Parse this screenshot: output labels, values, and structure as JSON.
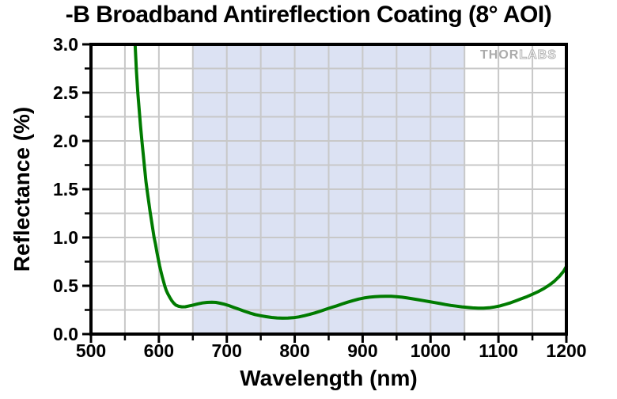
{
  "chart_data": {
    "type": "line",
    "title": "-B Broadband Antireflection Coating (8° AOI)",
    "xlabel": "Wavelength (nm)",
    "ylabel": "Reflectance (%)",
    "xlim": [
      500,
      1200
    ],
    "ylim": [
      0.0,
      3.0
    ],
    "x_ticks": [
      500,
      600,
      700,
      800,
      900,
      1000,
      1100,
      1200
    ],
    "x_tick_labels": [
      "500",
      "600",
      "700",
      "800",
      "900",
      "1000",
      "1100",
      "1200"
    ],
    "x_minor_tick_step": 50,
    "y_ticks": [
      0.0,
      0.5,
      1.0,
      1.5,
      2.0,
      2.5,
      3.0
    ],
    "y_tick_labels": [
      "0.0",
      "0.5",
      "1.0",
      "1.5",
      "2.0",
      "2.5",
      "3.0"
    ],
    "y_minor_tick_step": 0.25,
    "grid": {
      "on": true,
      "x_step": 50,
      "y_step": 0.25,
      "color": "#c8c8c8"
    },
    "shaded_region": {
      "x_start": 650,
      "x_end": 1050,
      "color": "#dce2f3"
    },
    "axis_color": "#000000",
    "watermark": {
      "solid": "THOR",
      "outline": "LABS"
    },
    "series": [
      {
        "name": "Reflectance",
        "color": "#007b00",
        "points": [
          [
            565,
            3.0
          ],
          [
            567,
            2.72
          ],
          [
            569,
            2.5
          ],
          [
            571,
            2.32
          ],
          [
            573,
            2.15
          ],
          [
            575,
            2.0
          ],
          [
            577,
            1.86
          ],
          [
            579,
            1.72
          ],
          [
            581,
            1.58
          ],
          [
            583,
            1.47
          ],
          [
            585,
            1.37
          ],
          [
            587,
            1.27
          ],
          [
            589,
            1.18
          ],
          [
            591,
            1.09
          ],
          [
            593,
            1.0
          ],
          [
            595,
            0.93
          ],
          [
            597,
            0.85
          ],
          [
            599,
            0.78
          ],
          [
            601,
            0.71
          ],
          [
            603,
            0.65
          ],
          [
            605,
            0.59
          ],
          [
            607,
            0.54
          ],
          [
            609,
            0.49
          ],
          [
            611,
            0.45
          ],
          [
            613,
            0.42
          ],
          [
            616,
            0.38
          ],
          [
            619,
            0.345
          ],
          [
            622,
            0.32
          ],
          [
            625,
            0.3
          ],
          [
            629,
            0.288
          ],
          [
            634,
            0.282
          ],
          [
            639,
            0.283
          ],
          [
            644,
            0.29
          ],
          [
            650,
            0.3
          ],
          [
            657,
            0.312
          ],
          [
            664,
            0.322
          ],
          [
            671,
            0.328
          ],
          [
            678,
            0.33
          ],
          [
            684,
            0.328
          ],
          [
            690,
            0.32
          ],
          [
            696,
            0.31
          ],
          [
            703,
            0.295
          ],
          [
            710,
            0.277
          ],
          [
            718,
            0.257
          ],
          [
            726,
            0.237
          ],
          [
            734,
            0.218
          ],
          [
            742,
            0.202
          ],
          [
            750,
            0.19
          ],
          [
            758,
            0.18
          ],
          [
            766,
            0.172
          ],
          [
            774,
            0.167
          ],
          [
            782,
            0.165
          ],
          [
            790,
            0.166
          ],
          [
            798,
            0.17
          ],
          [
            806,
            0.178
          ],
          [
            814,
            0.19
          ],
          [
            822,
            0.204
          ],
          [
            830,
            0.22
          ],
          [
            838,
            0.238
          ],
          [
            846,
            0.257
          ],
          [
            854,
            0.275
          ],
          [
            862,
            0.293
          ],
          [
            870,
            0.312
          ],
          [
            878,
            0.33
          ],
          [
            886,
            0.347
          ],
          [
            894,
            0.362
          ],
          [
            902,
            0.374
          ],
          [
            910,
            0.382
          ],
          [
            918,
            0.387
          ],
          [
            926,
            0.39
          ],
          [
            934,
            0.391
          ],
          [
            942,
            0.391
          ],
          [
            950,
            0.388
          ],
          [
            958,
            0.382
          ],
          [
            966,
            0.374
          ],
          [
            974,
            0.365
          ],
          [
            982,
            0.356
          ],
          [
            990,
            0.346
          ],
          [
            998,
            0.336
          ],
          [
            1006,
            0.326
          ],
          [
            1014,
            0.316
          ],
          [
            1022,
            0.306
          ],
          [
            1030,
            0.297
          ],
          [
            1038,
            0.289
          ],
          [
            1046,
            0.282
          ],
          [
            1054,
            0.276
          ],
          [
            1062,
            0.271
          ],
          [
            1070,
            0.268
          ],
          [
            1078,
            0.268
          ],
          [
            1086,
            0.272
          ],
          [
            1094,
            0.28
          ],
          [
            1102,
            0.292
          ],
          [
            1110,
            0.307
          ],
          [
            1118,
            0.325
          ],
          [
            1126,
            0.345
          ],
          [
            1134,
            0.366
          ],
          [
            1142,
            0.388
          ],
          [
            1150,
            0.412
          ],
          [
            1158,
            0.438
          ],
          [
            1166,
            0.468
          ],
          [
            1174,
            0.503
          ],
          [
            1182,
            0.545
          ],
          [
            1190,
            0.6
          ],
          [
            1196,
            0.652
          ],
          [
            1200,
            0.7
          ]
        ]
      }
    ]
  }
}
